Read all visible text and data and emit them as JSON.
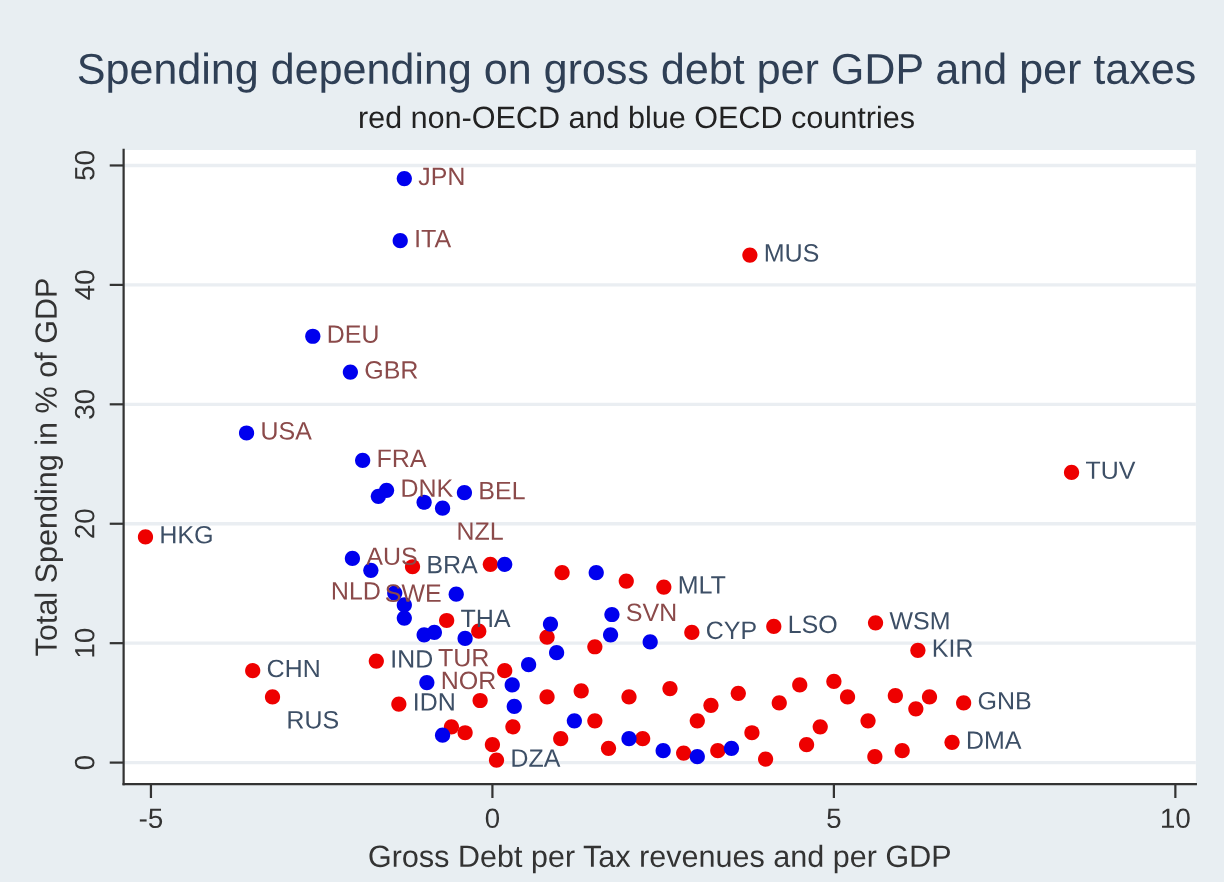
{
  "chart_data": {
    "type": "scatter",
    "title": "Spending depending on gross debt per GDP and per taxes",
    "subtitle": "red non-OECD and blue OECD countries",
    "xlabel": "Gross Debt per Tax revenues and per GDP",
    "ylabel": "Total Spending in % of GDP",
    "xlim": [
      -5.4,
      10.3
    ],
    "ylim": [
      -1.8,
      51.3
    ],
    "xticks": [
      -5,
      0,
      5,
      10
    ],
    "yticks": [
      0,
      10,
      20,
      30,
      40,
      50
    ],
    "grid": "y",
    "marker": "circle",
    "legend": false,
    "series": [
      {
        "color": "#ee0000",
        "x": [
          -5.08,
          -1.17,
          -0.03,
          1.02,
          1.96,
          2.51,
          -0.67,
          -0.2,
          0.8,
          1.5,
          2.92,
          4.12,
          5.61,
          6.23,
          3.77,
          8.48,
          -1.7,
          -3.51,
          -3.22,
          -1.37,
          0.06,
          6.73,
          6.9,
          0.18,
          -0.18,
          -0.6,
          -0.4,
          0.3,
          0.0,
          1.5,
          2.0,
          2.2,
          2.6,
          3.0,
          3.3,
          3.6,
          3.8,
          4.2,
          4.5,
          4.6,
          5.0,
          5.2,
          5.5,
          5.9,
          6.0,
          6.2,
          6.4,
          5.6,
          4.0,
          2.8,
          1.7,
          1.0,
          3.2,
          4.8,
          0.8,
          1.3
        ],
        "values": [
          18.9,
          16.4,
          16.6,
          15.9,
          15.2,
          14.7,
          11.9,
          11.0,
          10.5,
          9.7,
          10.9,
          11.4,
          11.7,
          9.4,
          42.5,
          24.3,
          8.5,
          7.7,
          5.5,
          4.9,
          0.2,
          1.7,
          5.0,
          7.7,
          5.2,
          3.0,
          2.5,
          3.0,
          1.5,
          3.5,
          5.5,
          2.0,
          6.2,
          3.5,
          1.0,
          5.8,
          2.5,
          5.0,
          6.5,
          1.5,
          6.8,
          5.5,
          3.5,
          5.6,
          1.0,
          4.5,
          5.5,
          0.5,
          0.3,
          0.8,
          1.2,
          2.0,
          4.8,
          3.0,
          5.5,
          6.0
        ]
      },
      {
        "color": "#0000ee",
        "x": [
          -1.29,
          -1.35,
          -2.63,
          -2.08,
          -3.6,
          -1.9,
          -1.55,
          -1.67,
          -0.41,
          -1.0,
          -0.73,
          -2.05,
          -1.78,
          0.18,
          1.52,
          -1.43,
          -1.29,
          -1.29,
          -0.53,
          -1.0,
          -0.85,
          -0.4,
          0.85,
          1.75,
          1.73,
          2.31,
          0.94,
          0.53,
          -0.96,
          0.29,
          0.32,
          -0.73,
          1.2,
          2.0,
          2.5,
          3.0,
          3.5
        ],
        "values": [
          48.9,
          43.7,
          35.7,
          32.7,
          27.6,
          25.3,
          22.8,
          22.3,
          22.6,
          21.8,
          21.3,
          17.1,
          16.1,
          16.6,
          15.9,
          14.2,
          13.2,
          12.1,
          14.1,
          10.7,
          10.9,
          10.4,
          11.6,
          12.4,
          10.7,
          10.1,
          9.2,
          8.2,
          6.7,
          6.5,
          4.7,
          2.3,
          3.5,
          2.0,
          1.0,
          0.5,
          1.2
        ]
      }
    ],
    "annotations": [
      {
        "text": "HKG",
        "x": -5.08,
        "y": 18.9
      },
      {
        "text": "BRA",
        "x": -1.17,
        "y": 16.4
      },
      {
        "text": "MLT",
        "x": 2.51,
        "y": 14.7
      },
      {
        "text": "THA",
        "x": -0.67,
        "y": 11.9
      },
      {
        "text": "CYP",
        "x": 2.92,
        "y": 10.9
      },
      {
        "text": "LSO",
        "x": 4.12,
        "y": 11.4
      },
      {
        "text": "WSM",
        "x": 5.61,
        "y": 11.7
      },
      {
        "text": "KIR",
        "x": 6.23,
        "y": 9.4
      },
      {
        "text": "MUS",
        "x": 3.77,
        "y": 42.5
      },
      {
        "text": "TUV",
        "x": 8.48,
        "y": 24.3
      },
      {
        "text": "IND",
        "x": -1.7,
        "y": 8.5
      },
      {
        "text": "CHN",
        "x": -3.51,
        "y": 7.7
      },
      {
        "text": "RUS",
        "x": -3.22,
        "y": 5.5
      },
      {
        "text": "IDN",
        "x": -1.37,
        "y": 4.9
      },
      {
        "text": "DZA",
        "x": 0.06,
        "y": 0.2
      },
      {
        "text": "DMA",
        "x": 6.73,
        "y": 1.7
      },
      {
        "text": "GNB",
        "x": 6.9,
        "y": 5.0
      },
      {
        "text": "JPN",
        "x": -1.29,
        "y": 48.9
      },
      {
        "text": "ITA",
        "x": -1.35,
        "y": 43.7
      },
      {
        "text": "DEU",
        "x": -2.63,
        "y": 35.7
      },
      {
        "text": "GBR",
        "x": -2.08,
        "y": 32.7
      },
      {
        "text": "USA",
        "x": -3.6,
        "y": 27.6
      },
      {
        "text": "FRA",
        "x": -1.9,
        "y": 25.3
      },
      {
        "text": "DNK",
        "x": -1.55,
        "y": 22.8
      },
      {
        "text": "BEL",
        "x": -0.41,
        "y": 22.6
      },
      {
        "text": "NZL",
        "x": -0.73,
        "y": 21.3
      },
      {
        "text": "AUS",
        "x": -2.05,
        "y": 17.1
      },
      {
        "text": "SWE",
        "x": -1.78,
        "y": 16.1
      },
      {
        "text": "NLD",
        "x": -1.43,
        "y": 14.2
      },
      {
        "text": "TUR",
        "x": -1.0,
        "y": 10.7
      },
      {
        "text": "SVN",
        "x": 1.75,
        "y": 12.4
      },
      {
        "text": "NOR",
        "x": -0.96,
        "y": 6.7
      }
    ]
  }
}
